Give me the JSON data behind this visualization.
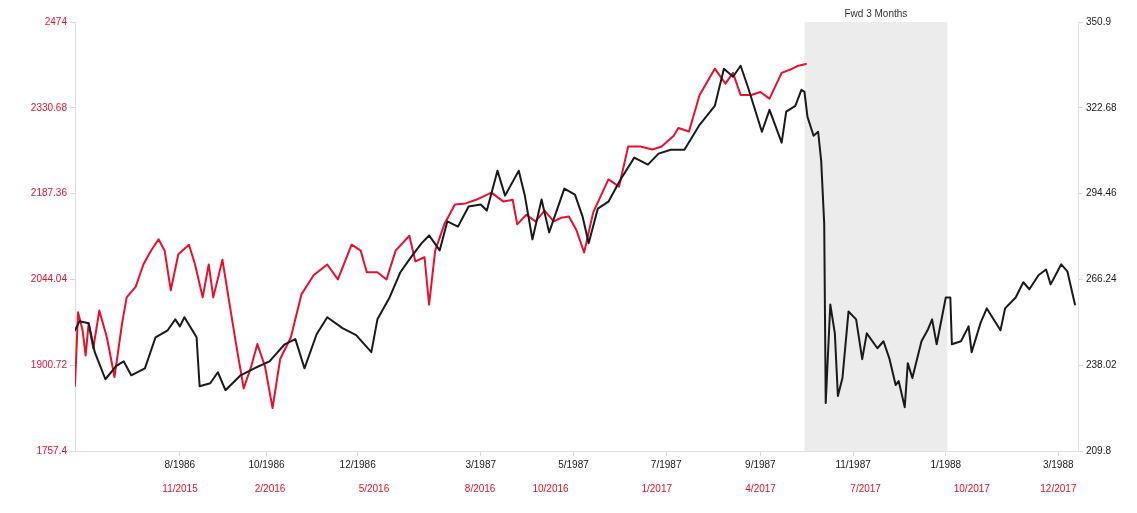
{
  "chart_data": {
    "type": "line",
    "xlim": [
      "1986-06-07",
      "1988-03-28"
    ],
    "xticks": [
      {
        "value": "1986-08-15",
        "label": "8/1986"
      },
      {
        "value": "1986-10-11",
        "label": "10/1986"
      },
      {
        "value": "1986-12-10",
        "label": "12/1986"
      },
      {
        "value": "1987-03-01",
        "label": "3/1987"
      },
      {
        "value": "1987-05-01",
        "label": "5/1987"
      },
      {
        "value": "1987-07-01",
        "label": "7/1987"
      },
      {
        "value": "1987-09-01",
        "label": "9/1987"
      },
      {
        "value": "1987-11-01",
        "label": "11/1987"
      },
      {
        "value": "1988-01-01",
        "label": "1/1988"
      },
      {
        "value": "1988-03-15",
        "label": "3/1988"
      }
    ],
    "x2lim": [
      "2015-08-16",
      "2018-01-01"
    ],
    "x2ticks": [
      {
        "value": "2015-11-15",
        "label": "11/2015"
      },
      {
        "value": "2016-02-01",
        "label": "2/2016"
      },
      {
        "value": "2016-05-01",
        "label": "5/2016"
      },
      {
        "value": "2016-08-01",
        "label": "8/2016"
      },
      {
        "value": "2016-10-01",
        "label": "10/2016"
      },
      {
        "value": "2017-01-01",
        "label": "1/2017"
      },
      {
        "value": "2017-04-01",
        "label": "4/2017"
      },
      {
        "value": "2017-07-01",
        "label": "7/2017"
      },
      {
        "value": "2017-10-01",
        "label": "10/2017"
      },
      {
        "value": "2017-12-15",
        "label": "12/2017"
      }
    ],
    "ylim": [
      1757.4,
      2474
    ],
    "yticks": [
      1757.4,
      1900.72,
      2044.04,
      2187.36,
      2330.68,
      2474
    ],
    "y2lim": [
      209.8,
      350.9
    ],
    "y2ticks": [
      209.8,
      238.02,
      266.24,
      294.46,
      322.68,
      350.9
    ],
    "bands": [
      {
        "axis": "x",
        "from": "1987-09-30",
        "to": "1988-01-02",
        "label": "Fwd 3 Months",
        "color": "#ececec"
      }
    ],
    "series": [
      {
        "color": "#1a1a1a",
        "axis": "y2",
        "x": [
          "1986-06-07",
          "1986-06-10",
          "1986-06-16",
          "1986-06-20",
          "1986-06-27",
          "1986-07-04",
          "1986-07-09",
          "1986-07-14",
          "1986-07-23",
          "1986-07-30",
          "1986-08-07",
          "1986-08-12",
          "1986-08-15",
          "1986-08-18",
          "1986-08-26",
          "1986-08-28",
          "1986-09-04",
          "1986-09-09",
          "1986-09-14",
          "1986-09-24",
          "1986-10-03",
          "1986-10-13",
          "1986-10-23",
          "1986-10-30",
          "1986-11-05",
          "1986-11-13",
          "1986-11-20",
          "1986-11-30",
          "1986-12-09",
          "1986-12-19",
          "1986-12-23",
          "1986-12-31",
          "1987-01-07",
          "1987-01-14",
          "1987-01-21",
          "1987-01-26",
          "1987-02-02",
          "1987-02-07",
          "1987-02-14",
          "1987-02-21",
          "1987-03-01",
          "1987-03-05",
          "1987-03-12",
          "1987-03-17",
          "1987-03-26",
          "1987-03-30",
          "1987-04-04",
          "1987-04-10",
          "1987-04-15",
          "1987-04-25",
          "1987-05-02",
          "1987-05-07",
          "1987-05-11",
          "1987-05-17",
          "1987-05-24",
          "1987-06-01",
          "1987-06-10",
          "1987-06-19",
          "1987-06-26",
          "1987-07-04",
          "1987-07-13",
          "1987-07-23",
          "1987-08-02",
          "1987-08-08",
          "1987-08-14",
          "1987-08-19",
          "1987-08-24",
          "1987-09-02",
          "1987-09-07",
          "1987-09-15",
          "1987-09-18",
          "1987-09-24",
          "1987-09-28",
          "1987-09-30",
          "1987-10-02",
          "1987-10-06",
          "1987-10-09",
          "1987-10-11",
          "1987-10-13",
          "1987-10-14",
          "1987-10-17",
          "1987-10-20",
          "1987-10-22",
          "1987-10-25",
          "1987-10-29",
          "1987-11-03",
          "1987-11-07",
          "1987-11-10",
          "1987-11-17",
          "1987-11-21",
          "1987-11-25",
          "1987-11-29",
          "1987-12-01",
          "1987-12-05",
          "1987-12-07",
          "1987-12-10",
          "1987-12-16",
          "1987-12-20",
          "1987-12-23",
          "1987-12-26",
          "1988-01-01",
          "1988-01-04",
          "1988-01-05",
          "1988-01-11",
          "1988-01-16",
          "1988-01-18",
          "1988-01-24",
          "1988-01-28",
          "1988-02-06",
          "1988-02-09",
          "1988-02-16",
          "1988-02-21",
          "1988-02-25",
          "1988-03-02",
          "1988-03-07",
          "1988-03-10",
          "1988-03-17",
          "1988-03-21",
          "1988-03-26"
        ],
        "values": [
          249.5,
          252.5,
          251.8,
          242.3,
          233.4,
          237.7,
          239.3,
          234.7,
          237.0,
          247.2,
          249.5,
          253.1,
          250.8,
          253.8,
          247.2,
          231.1,
          232.1,
          235.7,
          229.8,
          234.7,
          237.0,
          239.3,
          244.9,
          246.6,
          237.0,
          248.2,
          253.8,
          250.2,
          247.9,
          242.3,
          253.1,
          260.3,
          268.5,
          273.5,
          278.1,
          280.7,
          275.8,
          285.3,
          283.6,
          290.2,
          290.9,
          288.9,
          302.0,
          293.8,
          302.0,
          293.8,
          279.4,
          292.5,
          281.7,
          296.1,
          294.1,
          286.9,
          278.1,
          289.5,
          291.8,
          299.1,
          306.3,
          304.0,
          307.6,
          308.9,
          308.9,
          317.1,
          323.3,
          335.5,
          332.9,
          336.5,
          329.2,
          314.8,
          322.0,
          311.2,
          321.4,
          323.3,
          328.6,
          327.9,
          319.7,
          313.5,
          314.8,
          305.3,
          284.6,
          225.6,
          258.0,
          248.5,
          227.9,
          233.8,
          255.7,
          253.1,
          240.0,
          248.5,
          243.6,
          245.9,
          240.0,
          231.5,
          232.8,
          224.2,
          238.7,
          233.8,
          245.9,
          249.5,
          253.1,
          244.9,
          260.3,
          260.3,
          244.9,
          245.9,
          250.8,
          242.3,
          252.1,
          256.7,
          249.5,
          256.7,
          260.3,
          265.3,
          263.0,
          267.6,
          269.5,
          264.6,
          271.2,
          268.9,
          258.0
        ]
      },
      {
        "color": "#e8112d",
        "axis": "y",
        "x": [
          "1986-06-07",
          "1986-06-09",
          "1986-06-12",
          "1986-06-14",
          "1986-06-16",
          "1986-06-19",
          "1986-06-23",
          "1986-06-28",
          "1986-07-03",
          "1986-07-08",
          "1986-07-11",
          "1986-07-17",
          "1986-07-22",
          "1986-07-27",
          "1986-08-01",
          "1986-08-05",
          "1986-08-09",
          "1986-08-14",
          "1986-08-21",
          "1986-08-25",
          "1986-08-30",
          "1986-09-03",
          "1986-09-06",
          "1986-09-12",
          "1986-09-16",
          "1986-09-21",
          "1986-09-26",
          "1986-10-01",
          "1986-10-05",
          "1986-10-10",
          "1986-10-15",
          "1986-10-20",
          "1986-10-27",
          "1986-11-03",
          "1986-11-11",
          "1986-11-20",
          "1986-11-27",
          "1986-12-06",
          "1986-12-12",
          "1986-12-16",
          "1986-12-23",
          "1986-12-29",
          "1987-01-04",
          "1987-01-13",
          "1987-01-17",
          "1987-01-23",
          "1987-01-26",
          "1987-01-30",
          "1987-02-05",
          "1987-02-12",
          "1987-02-19",
          "1987-02-26",
          "1987-03-08",
          "1987-03-16",
          "1987-03-22",
          "1987-03-25",
          "1987-03-31",
          "1987-04-06",
          "1987-04-12",
          "1987-04-18",
          "1987-04-23",
          "1987-04-28",
          "1987-05-03",
          "1987-05-08",
          "1987-05-14",
          "1987-05-24",
          "1987-05-31",
          "1987-06-06",
          "1987-06-14",
          "1987-06-22",
          "1987-06-28",
          "1987-07-06",
          "1987-07-09",
          "1987-07-16",
          "1987-07-23",
          "1987-08-02",
          "1987-08-09",
          "1987-08-14",
          "1987-08-19",
          "1987-08-26",
          "1987-09-01",
          "1987-09-07",
          "1987-09-15",
          "1987-09-22",
          "1987-09-26",
          "1987-10-01"
        ],
        "values": [
          1866,
          1989,
          1959,
          1917,
          1971,
          1929,
          1992,
          1947,
          1881,
          1971,
          2014,
          2032,
          2069,
          2092,
          2111,
          2092,
          2026,
          2086,
          2102,
          2069,
          2014,
          2069,
          2014,
          2077,
          2014,
          1936,
          1862,
          1899,
          1936,
          1899,
          1829,
          1911,
          1947,
          2019,
          2051,
          2069,
          2044,
          2102,
          2092,
          2056,
          2056,
          2044,
          2092,
          2117,
          2074,
          2081,
          2002,
          2092,
          2136,
          2169,
          2171,
          2177,
          2189,
          2174,
          2177,
          2136,
          2152,
          2141,
          2159,
          2141,
          2147,
          2149,
          2126,
          2089,
          2156,
          2211,
          2199,
          2266,
          2266,
          2261,
          2266,
          2284,
          2297,
          2291,
          2352,
          2396,
          2371,
          2389,
          2352,
          2352,
          2357,
          2346,
          2389,
          2396,
          2401,
          2404
        ]
      }
    ]
  }
}
